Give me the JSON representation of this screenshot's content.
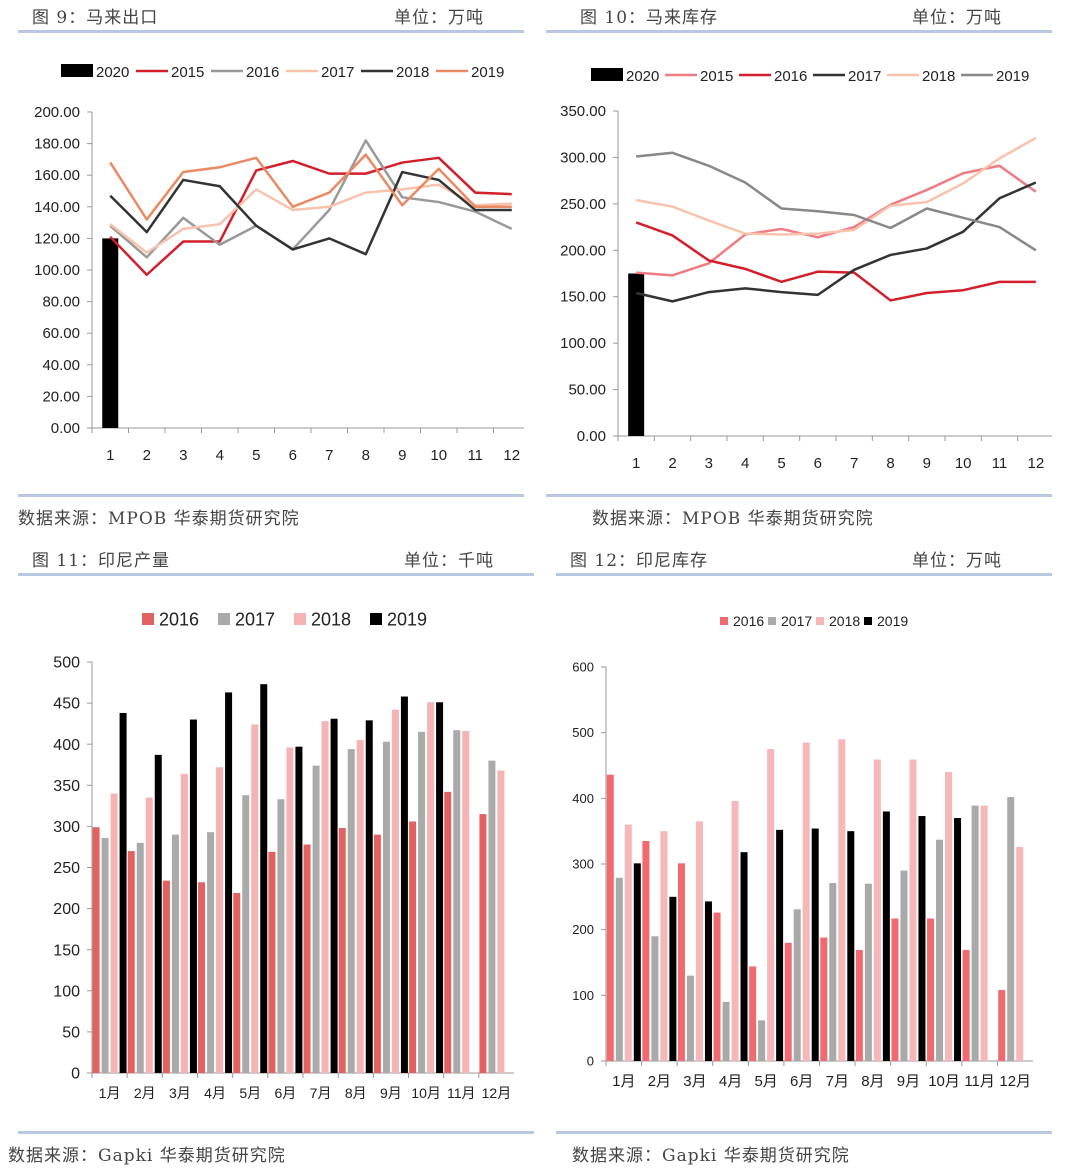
{
  "charts": [
    {
      "title": "图 9：马来出口",
      "unit": "单位：万吨",
      "source": "数据来源：MPOB  华泰期货研究院"
    },
    {
      "title": "图 10：马来库存",
      "unit": "单位：万吨",
      "source": "数据来源：MPOB  华泰期货研究院"
    },
    {
      "title": "图 11：印尼产量",
      "unit": "单位：千吨",
      "source": "数据来源：Gapki  华泰期货研究院"
    },
    {
      "title": "图 12：印尼库存",
      "unit": "单位：万吨",
      "source": "数据来源：Gapki  华泰期货研究院"
    }
  ],
  "chart_data": [
    {
      "type": "line",
      "title": "马来出口",
      "categories": [
        "1",
        "2",
        "3",
        "4",
        "5",
        "6",
        "7",
        "8",
        "9",
        "10",
        "11",
        "12"
      ],
      "ylim": [
        0,
        200
      ],
      "yticks": [
        "0.00",
        "20.00",
        "40.00",
        "60.00",
        "80.00",
        "100.00",
        "120.00",
        "140.00",
        "160.00",
        "180.00",
        "200.00"
      ],
      "grid": false,
      "legend": "top",
      "bar_series": {
        "name": "2020",
        "color": "#000000",
        "values": [
          120
        ]
      },
      "series": [
        {
          "name": "2015",
          "color": "#d21f2b",
          "values": [
            121,
            97,
            118,
            118,
            163,
            169,
            161,
            161,
            168,
            171,
            149,
            148
          ]
        },
        {
          "name": "2016",
          "color": "#999999",
          "values": [
            128,
            108,
            133,
            116,
            128,
            113,
            138,
            182,
            146,
            143,
            137,
            126
          ]
        },
        {
          "name": "2017",
          "color": "#f7c3ad",
          "values": [
            129,
            111,
            126,
            129,
            151,
            138,
            140,
            149,
            151,
            154,
            141,
            142
          ]
        },
        {
          "name": "2018",
          "color": "#333333",
          "values": [
            147,
            124,
            157,
            153,
            128,
            113,
            120,
            110,
            162,
            157,
            138,
            138
          ]
        },
        {
          "name": "2019",
          "color": "#eb8a62",
          "values": [
            168,
            132,
            162,
            165,
            171,
            140,
            149,
            173,
            141,
            164,
            140,
            140
          ]
        }
      ]
    },
    {
      "type": "line",
      "title": "马来库存",
      "categories": [
        "1",
        "2",
        "3",
        "4",
        "5",
        "6",
        "7",
        "8",
        "9",
        "10",
        "11",
        "12"
      ],
      "ylim": [
        0,
        350
      ],
      "yticks": [
        "0.00",
        "50.00",
        "100.00",
        "150.00",
        "200.00",
        "250.00",
        "300.00",
        "350.00"
      ],
      "grid": false,
      "legend": "top",
      "bar_series": {
        "name": "2020",
        "color": "#000000",
        "values": [
          175
        ]
      },
      "series": [
        {
          "name": "2015",
          "color": "#ef7b83",
          "values": [
            176,
            173,
            186,
            217,
            223,
            214,
            225,
            249,
            265,
            283,
            291,
            263
          ]
        },
        {
          "name": "2016",
          "color": "#d21f2b",
          "values": [
            230,
            216,
            189,
            180,
            166,
            177,
            176,
            146,
            154,
            157,
            166,
            166
          ]
        },
        {
          "name": "2017",
          "color": "#333333",
          "values": [
            154,
            145,
            155,
            159,
            155,
            152,
            179,
            195,
            202,
            220,
            256,
            273
          ]
        },
        {
          "name": "2018",
          "color": "#f7c3ad",
          "values": [
            254,
            247,
            232,
            218,
            217,
            218,
            222,
            248,
            252,
            272,
            299,
            321
          ]
        },
        {
          "name": "2019",
          "color": "#888888",
          "values": [
            301,
            305,
            291,
            273,
            245,
            242,
            238,
            224,
            245,
            235,
            225,
            200
          ]
        }
      ]
    },
    {
      "type": "bar",
      "title": "印尼产量",
      "categories": [
        "1月",
        "2月",
        "3月",
        "4月",
        "5月",
        "6月",
        "7月",
        "8月",
        "9月",
        "10月",
        "11月",
        "12月"
      ],
      "ylim": [
        0,
        500
      ],
      "yticks": [
        "0",
        "50",
        "100",
        "150",
        "200",
        "250",
        "300",
        "350",
        "400",
        "450",
        "500"
      ],
      "grid": false,
      "legend": "top",
      "series": [
        {
          "name": "2016",
          "color": "#e26262",
          "values": [
            299,
            270,
            234,
            232,
            219,
            269,
            278,
            298,
            290,
            306,
            342,
            315
          ]
        },
        {
          "name": "2017",
          "color": "#aaaaaa",
          "values": [
            286,
            280,
            290,
            293,
            338,
            333,
            374,
            394,
            403,
            415,
            417,
            380
          ]
        },
        {
          "name": "2018",
          "color": "#f5b3b3",
          "values": [
            340,
            335,
            364,
            372,
            424,
            396,
            428,
            405,
            442,
            451,
            416,
            368
          ]
        },
        {
          "name": "2019",
          "color": "#000000",
          "values": [
            438,
            387,
            430,
            463,
            473,
            397,
            431,
            429,
            458,
            451,
            null,
            null
          ]
        }
      ]
    },
    {
      "type": "bar",
      "title": "印尼库存",
      "categories": [
        "1月",
        "2月",
        "3月",
        "4月",
        "5月",
        "6月",
        "7月",
        "8月",
        "9月",
        "10月",
        "11月",
        "12月"
      ],
      "ylim": [
        0,
        600
      ],
      "yticks": [
        "0",
        "100",
        "200",
        "300",
        "400",
        "500",
        "600"
      ],
      "grid": false,
      "legend": "top",
      "series": [
        {
          "name": "2016",
          "color": "#f06a70",
          "values": [
            436,
            335,
            301,
            226,
            144,
            180,
            188,
            169,
            217,
            217,
            169,
            108
          ]
        },
        {
          "name": "2017",
          "color": "#a9a9a9",
          "values": [
            279,
            190,
            130,
            90,
            62,
            231,
            271,
            270,
            290,
            337,
            389,
            402
          ]
        },
        {
          "name": "2018",
          "color": "#f5b7b7",
          "values": [
            360,
            350,
            365,
            396,
            475,
            485,
            490,
            459,
            459,
            440,
            389,
            326
          ]
        },
        {
          "name": "2019",
          "color": "#000000",
          "values": [
            301,
            250,
            243,
            318,
            352,
            354,
            350,
            380,
            373,
            370,
            null,
            null
          ]
        }
      ]
    }
  ]
}
